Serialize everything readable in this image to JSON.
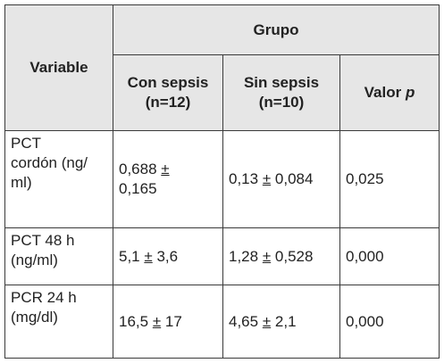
{
  "table": {
    "header": {
      "variable": "Variable",
      "grupo": "Grupo",
      "con_sepsis_line1": "Con sepsis",
      "con_sepsis_line2": "(n=12)",
      "sin_sepsis_line1": "Sin sepsis",
      "sin_sepsis_line2": "(n=10)",
      "valor": "Valor",
      "p": "p"
    },
    "rows": [
      {
        "variable_lines": [
          "PCT",
          "cordón (ng/",
          "ml)"
        ],
        "con_sepsis": {
          "mean": "0,688",
          "pm": "±",
          "sd": "0,165"
        },
        "sin_sepsis": {
          "mean": "0,13",
          "pm": "±",
          "sd": "0,084"
        },
        "valor_p": "0,025"
      },
      {
        "variable_lines": [
          "PCT 48 h",
          "(ng/ml)"
        ],
        "con_sepsis": {
          "mean": "5,1",
          "pm": "±",
          "sd": "3,6"
        },
        "sin_sepsis": {
          "mean": "1,28",
          "pm": "±",
          "sd": "0,528"
        },
        "valor_p": "0,000"
      },
      {
        "variable_lines": [
          "PCR 24 h",
          "(mg/dl)"
        ],
        "con_sepsis": {
          "mean": "16,5",
          "pm": "±",
          "sd": "17"
        },
        "sin_sepsis": {
          "mean": "4,65",
          "pm": "±",
          "sd": "2,1"
        },
        "valor_p": "0,000"
      }
    ]
  }
}
